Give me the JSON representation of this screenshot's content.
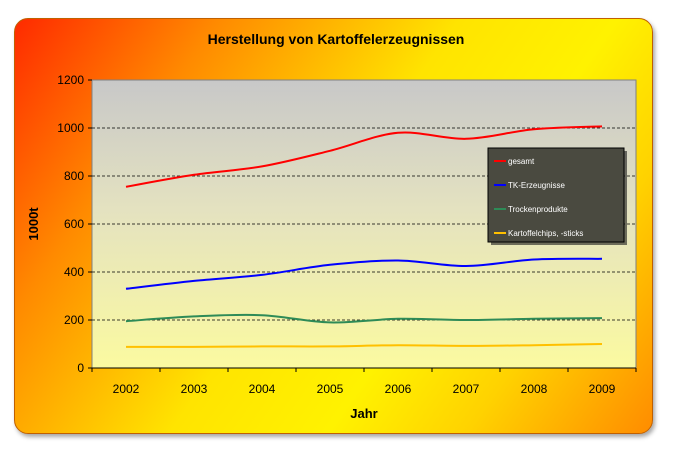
{
  "chart_data": {
    "type": "line",
    "title": "Herstellung von Kartoffelerzeugnissen",
    "xlabel": "Jahr",
    "ylabel": "1000t",
    "ylim": [
      0,
      1200
    ],
    "yticks": [
      0,
      200,
      400,
      600,
      800,
      1000,
      1200
    ],
    "x": [
      "2002",
      "2003",
      "2004",
      "2005",
      "2006",
      "2007",
      "2008",
      "2009"
    ],
    "grid": "horizontal dashed",
    "legend_position": "right",
    "series": [
      {
        "name": "gesamt",
        "color": "#ff0000",
        "values": [
          755,
          805,
          840,
          905,
          980,
          955,
          995,
          1007
        ]
      },
      {
        "name": "TK-Erzeugnisse",
        "color": "#0000ff",
        "values": [
          330,
          363,
          388,
          430,
          448,
          425,
          452,
          455
        ]
      },
      {
        "name": "Trockenprodukte",
        "color": "#2e8b57",
        "values": [
          195,
          215,
          220,
          190,
          205,
          200,
          205,
          208
        ]
      },
      {
        "name": "Kartoffelchips, -sticks",
        "color": "#ffc000",
        "values": [
          88,
          88,
          90,
          90,
          95,
          92,
          95,
          100
        ]
      }
    ]
  }
}
